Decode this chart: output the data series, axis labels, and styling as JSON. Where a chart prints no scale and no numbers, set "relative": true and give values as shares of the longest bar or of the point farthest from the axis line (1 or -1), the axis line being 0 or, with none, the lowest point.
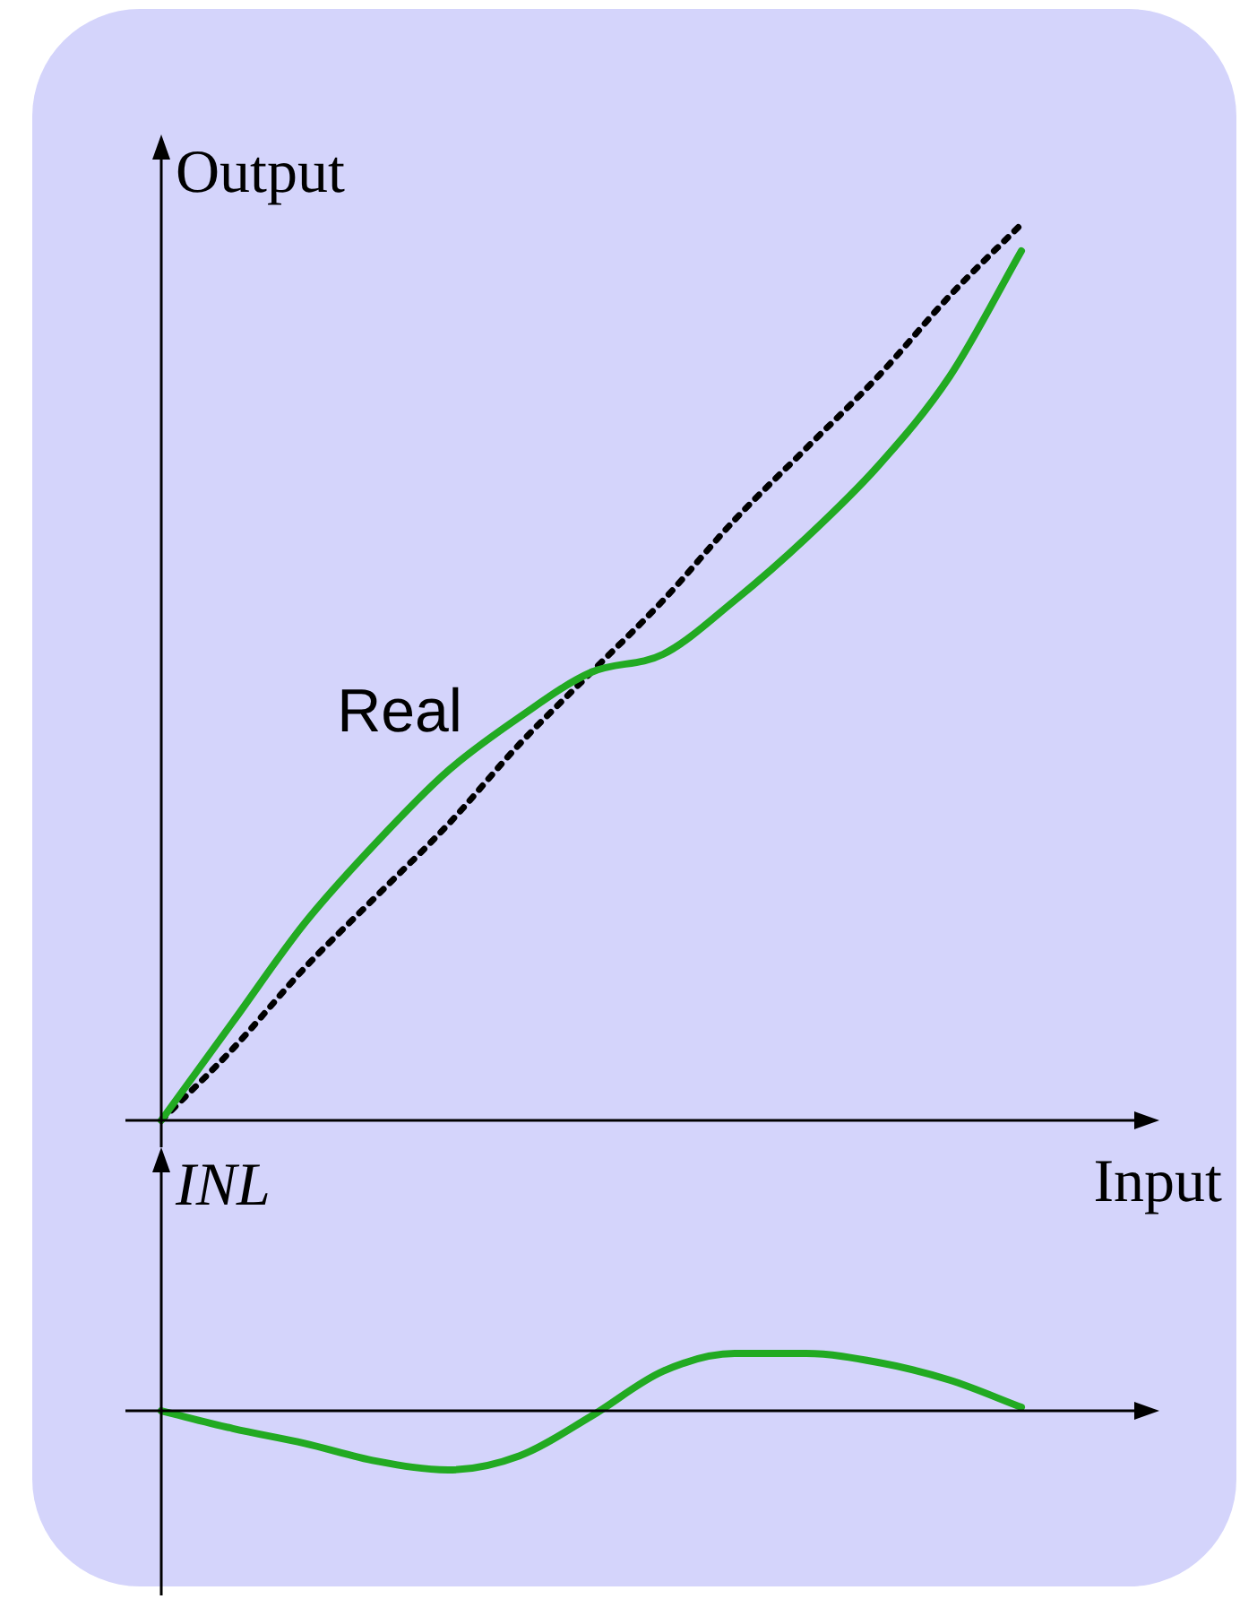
{
  "chart_data": [
    {
      "type": "line",
      "relative": true,
      "ylabel": "Output",
      "xlabel": "Input",
      "legend": false,
      "marker": "none",
      "categories": [
        null,
        null,
        null,
        null,
        null,
        null,
        null,
        null,
        null,
        null,
        null,
        null,
        null,
        null
      ],
      "series": [
        {
          "name": "Real",
          "color": "#22aa22",
          "line_style": "solid",
          "values": [
            0,
            0.11,
            0.22,
            0.31,
            0.39,
            0.45,
            0.5,
            0.52,
            0.58,
            0.65,
            0.73,
            0.83,
            0.97,
            null
          ]
        },
        {
          "color": "#000000",
          "line_style": "dotted",
          "values": [
            0,
            0.08,
            0.17,
            0.25,
            0.33,
            0.42,
            0.5,
            0.58,
            0.67,
            0.75,
            0.83,
            0.92,
            1,
            null
          ]
        }
      ]
    },
    {
      "type": "line",
      "relative": true,
      "ylabel": "INL",
      "legend": false,
      "marker": "none",
      "categories": [
        null,
        null,
        null,
        null,
        null,
        null,
        null,
        null,
        null,
        null,
        null,
        null,
        null,
        null
      ],
      "series": [
        {
          "color": "#22aa22",
          "line_style": "solid",
          "values": [
            0,
            -0.3,
            -0.55,
            -0.85,
            -1,
            -0.76,
            -0.09,
            0.67,
            0.97,
            0.97,
            0.82,
            0.52,
            0.06,
            null
          ]
        }
      ]
    }
  ]
}
